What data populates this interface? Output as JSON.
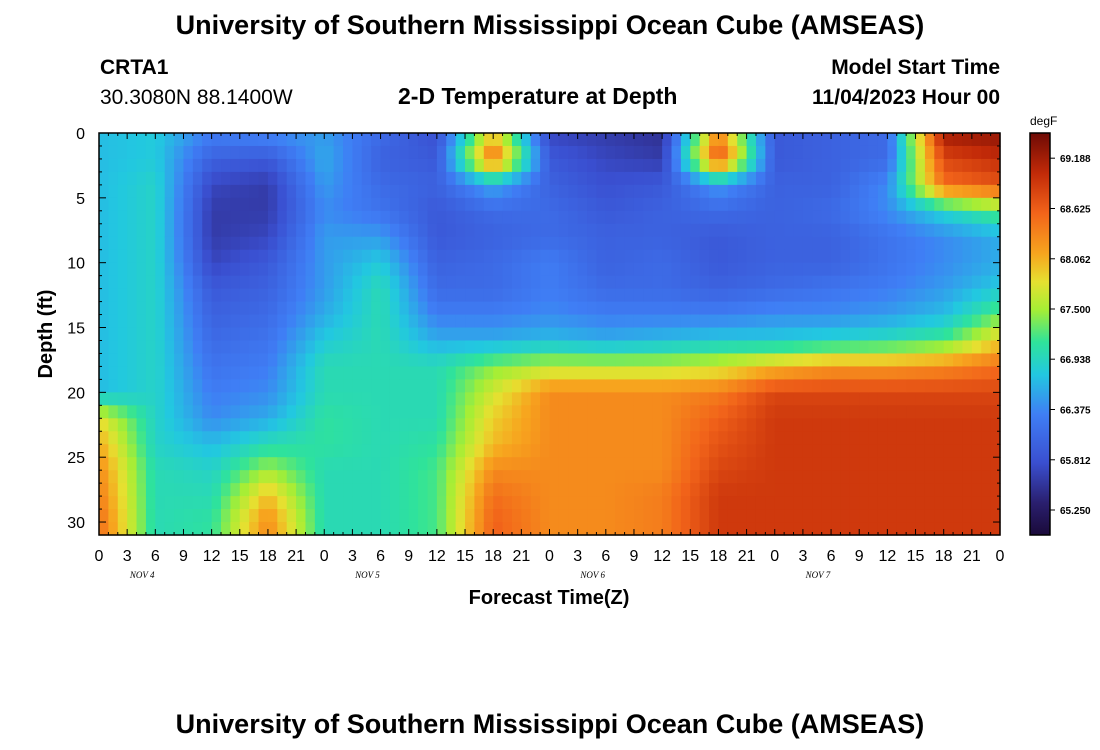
{
  "title": "University of Southern Mississippi Ocean Cube (AMSEAS)",
  "station": {
    "id": "CRTA1",
    "coords": "30.3080N  88.1400W"
  },
  "plot_title": "2-D Temperature at Depth",
  "model_start": {
    "label": "Model Start Time",
    "value": "11/04/2023 Hour 00"
  },
  "footer_title": "University of Southern Mississippi Ocean Cube (AMSEAS)",
  "chart_data": {
    "type": "heatmap",
    "title": "2-D Temperature at Depth",
    "xlabel": "Forecast Time(Z)",
    "ylabel": "Depth (ft)",
    "units": "degF",
    "x_range_hours": [
      0,
      96
    ],
    "x_tick_labels": [
      "0",
      "3",
      "6",
      "9",
      "12",
      "15",
      "18",
      "21",
      "0",
      "3",
      "6",
      "9",
      "12",
      "15",
      "18",
      "21",
      "0",
      "3",
      "6",
      "9",
      "12",
      "15",
      "18",
      "21",
      "0",
      "3",
      "6",
      "9",
      "12",
      "15",
      "18",
      "21",
      "0"
    ],
    "day_labels": [
      "NOV 4",
      "NOV 5",
      "NOV 6",
      "NOV 7"
    ],
    "y_range_ft": [
      0,
      31
    ],
    "y_ticks": [
      0,
      5,
      10,
      15,
      20,
      25,
      30
    ],
    "colorbar": {
      "range": [
        64.97,
        69.47
      ],
      "tick_values": [
        69.188,
        68.625,
        68.062,
        67.5,
        66.938,
        66.375,
        65.812,
        65.25
      ],
      "tick_labels": [
        "69.188",
        "68.625",
        "68.062",
        "67.500",
        "66.938",
        "66.375",
        "65.812",
        "65.250"
      ]
    },
    "depths_ft": [
      0,
      2,
      4,
      6,
      8,
      10,
      12,
      14,
      16,
      18,
      20,
      22,
      24,
      26,
      28,
      30
    ],
    "times_h": [
      0,
      6,
      12,
      18,
      24,
      30,
      36,
      42,
      48,
      54,
      60,
      66,
      72,
      78,
      84,
      90,
      96
    ],
    "values": [
      [
        66.7,
        66.8,
        66.3,
        66.4,
        66.5,
        66.1,
        65.8,
        67.9,
        65.7,
        65.6,
        65.5,
        68.3,
        65.9,
        66.0,
        66.1,
        69.2,
        69.3
      ],
      [
        66.7,
        66.8,
        66.0,
        65.9,
        66.6,
        66.0,
        65.9,
        68.6,
        65.9,
        65.7,
        65.6,
        68.8,
        65.9,
        66.0,
        66.1,
        68.8,
        69.0
      ],
      [
        66.7,
        66.9,
        65.7,
        65.6,
        66.5,
        66.1,
        66.0,
        66.6,
        66.0,
        65.8,
        65.9,
        66.5,
        66.0,
        66.0,
        66.4,
        68.5,
        68.7
      ],
      [
        66.7,
        66.9,
        65.6,
        65.6,
        66.4,
        66.2,
        65.9,
        66.1,
        66.1,
        65.9,
        66.0,
        66.1,
        66.0,
        66.1,
        66.4,
        66.9,
        67.3
      ],
      [
        66.7,
        66.9,
        65.6,
        65.7,
        66.5,
        66.5,
        65.9,
        66.0,
        66.1,
        66.0,
        66.0,
        65.9,
        66.0,
        66.0,
        66.2,
        66.4,
        66.6
      ],
      [
        66.7,
        66.9,
        65.7,
        65.9,
        66.5,
        66.8,
        66.0,
        66.1,
        66.3,
        66.0,
        66.1,
        65.9,
        66.0,
        66.0,
        66.2,
        66.4,
        66.6
      ],
      [
        66.7,
        66.9,
        65.9,
        66.0,
        66.5,
        67.0,
        66.1,
        66.1,
        66.3,
        66.1,
        66.1,
        66.0,
        66.1,
        66.2,
        66.3,
        66.5,
        66.8
      ],
      [
        66.7,
        66.9,
        66.0,
        66.1,
        66.6,
        67.0,
        66.3,
        66.3,
        66.4,
        66.3,
        66.3,
        66.3,
        66.4,
        66.4,
        66.5,
        66.7,
        67.3
      ],
      [
        66.7,
        66.9,
        66.1,
        66.2,
        66.8,
        67.0,
        66.6,
        66.6,
        66.7,
        66.6,
        66.7,
        66.8,
        66.8,
        66.9,
        67.0,
        67.2,
        67.9
      ],
      [
        66.7,
        66.9,
        66.2,
        66.3,
        67.0,
        67.0,
        67.0,
        67.4,
        67.6,
        67.6,
        67.6,
        67.7,
        68.0,
        68.2,
        68.2,
        68.3,
        68.5
      ],
      [
        66.7,
        66.9,
        66.3,
        66.4,
        67.0,
        67.0,
        67.0,
        67.7,
        68.3,
        68.3,
        68.3,
        68.4,
        68.8,
        68.8,
        68.8,
        68.8,
        68.8
      ],
      [
        67.8,
        66.9,
        66.4,
        66.6,
        67.1,
        67.0,
        67.0,
        67.9,
        68.3,
        68.3,
        68.3,
        68.6,
        68.9,
        68.9,
        68.9,
        68.9,
        68.9
      ],
      [
        68.1,
        66.9,
        66.7,
        67.0,
        67.1,
        67.0,
        67.1,
        68.0,
        68.3,
        68.3,
        68.3,
        68.7,
        68.9,
        68.9,
        68.9,
        68.9,
        68.9
      ],
      [
        68.3,
        67.0,
        66.9,
        67.5,
        67.0,
        67.0,
        67.2,
        68.3,
        68.3,
        68.3,
        68.3,
        68.8,
        68.9,
        68.9,
        68.9,
        68.9,
        68.9
      ],
      [
        68.4,
        67.0,
        67.0,
        68.0,
        67.0,
        67.0,
        67.2,
        68.5,
        68.3,
        68.3,
        68.4,
        68.9,
        68.9,
        68.9,
        68.9,
        68.9,
        68.9
      ],
      [
        68.5,
        67.0,
        67.1,
        68.3,
        67.0,
        67.0,
        67.2,
        68.6,
        68.3,
        68.3,
        68.4,
        68.9,
        68.9,
        68.9,
        68.9,
        68.9,
        68.9
      ]
    ]
  }
}
